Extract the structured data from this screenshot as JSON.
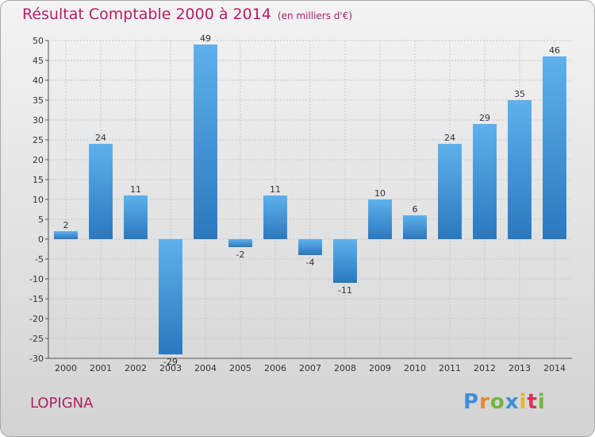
{
  "header": {
    "title": "Résultat Comptable 2000 à 2014",
    "unit": "(en milliers d'€)"
  },
  "location": "LOPIGNA",
  "logo": {
    "letters": [
      "P",
      "r",
      "o",
      "x",
      "i",
      "t",
      "i"
    ]
  },
  "chart_data": {
    "type": "bar",
    "title": "Résultat Comptable 2000 à 2014",
    "subtitle": "(en milliers d'€)",
    "xlabel": "",
    "ylabel": "",
    "categories": [
      "2000",
      "2001",
      "2002",
      "2003",
      "2004",
      "2005",
      "2006",
      "2007",
      "2008",
      "2009",
      "2010",
      "2011",
      "2012",
      "2013",
      "2014"
    ],
    "values": [
      2,
      24,
      11,
      -29,
      49,
      -2,
      11,
      -4,
      -11,
      10,
      6,
      24,
      29,
      35,
      46
    ],
    "ylim": [
      -30,
      50
    ],
    "yticks": [
      50,
      45,
      40,
      35,
      30,
      25,
      20,
      15,
      10,
      5,
      0,
      -5,
      -10,
      -15,
      -20,
      -25,
      -30
    ],
    "grid": true,
    "bar_color": "#4a9fe0"
  }
}
